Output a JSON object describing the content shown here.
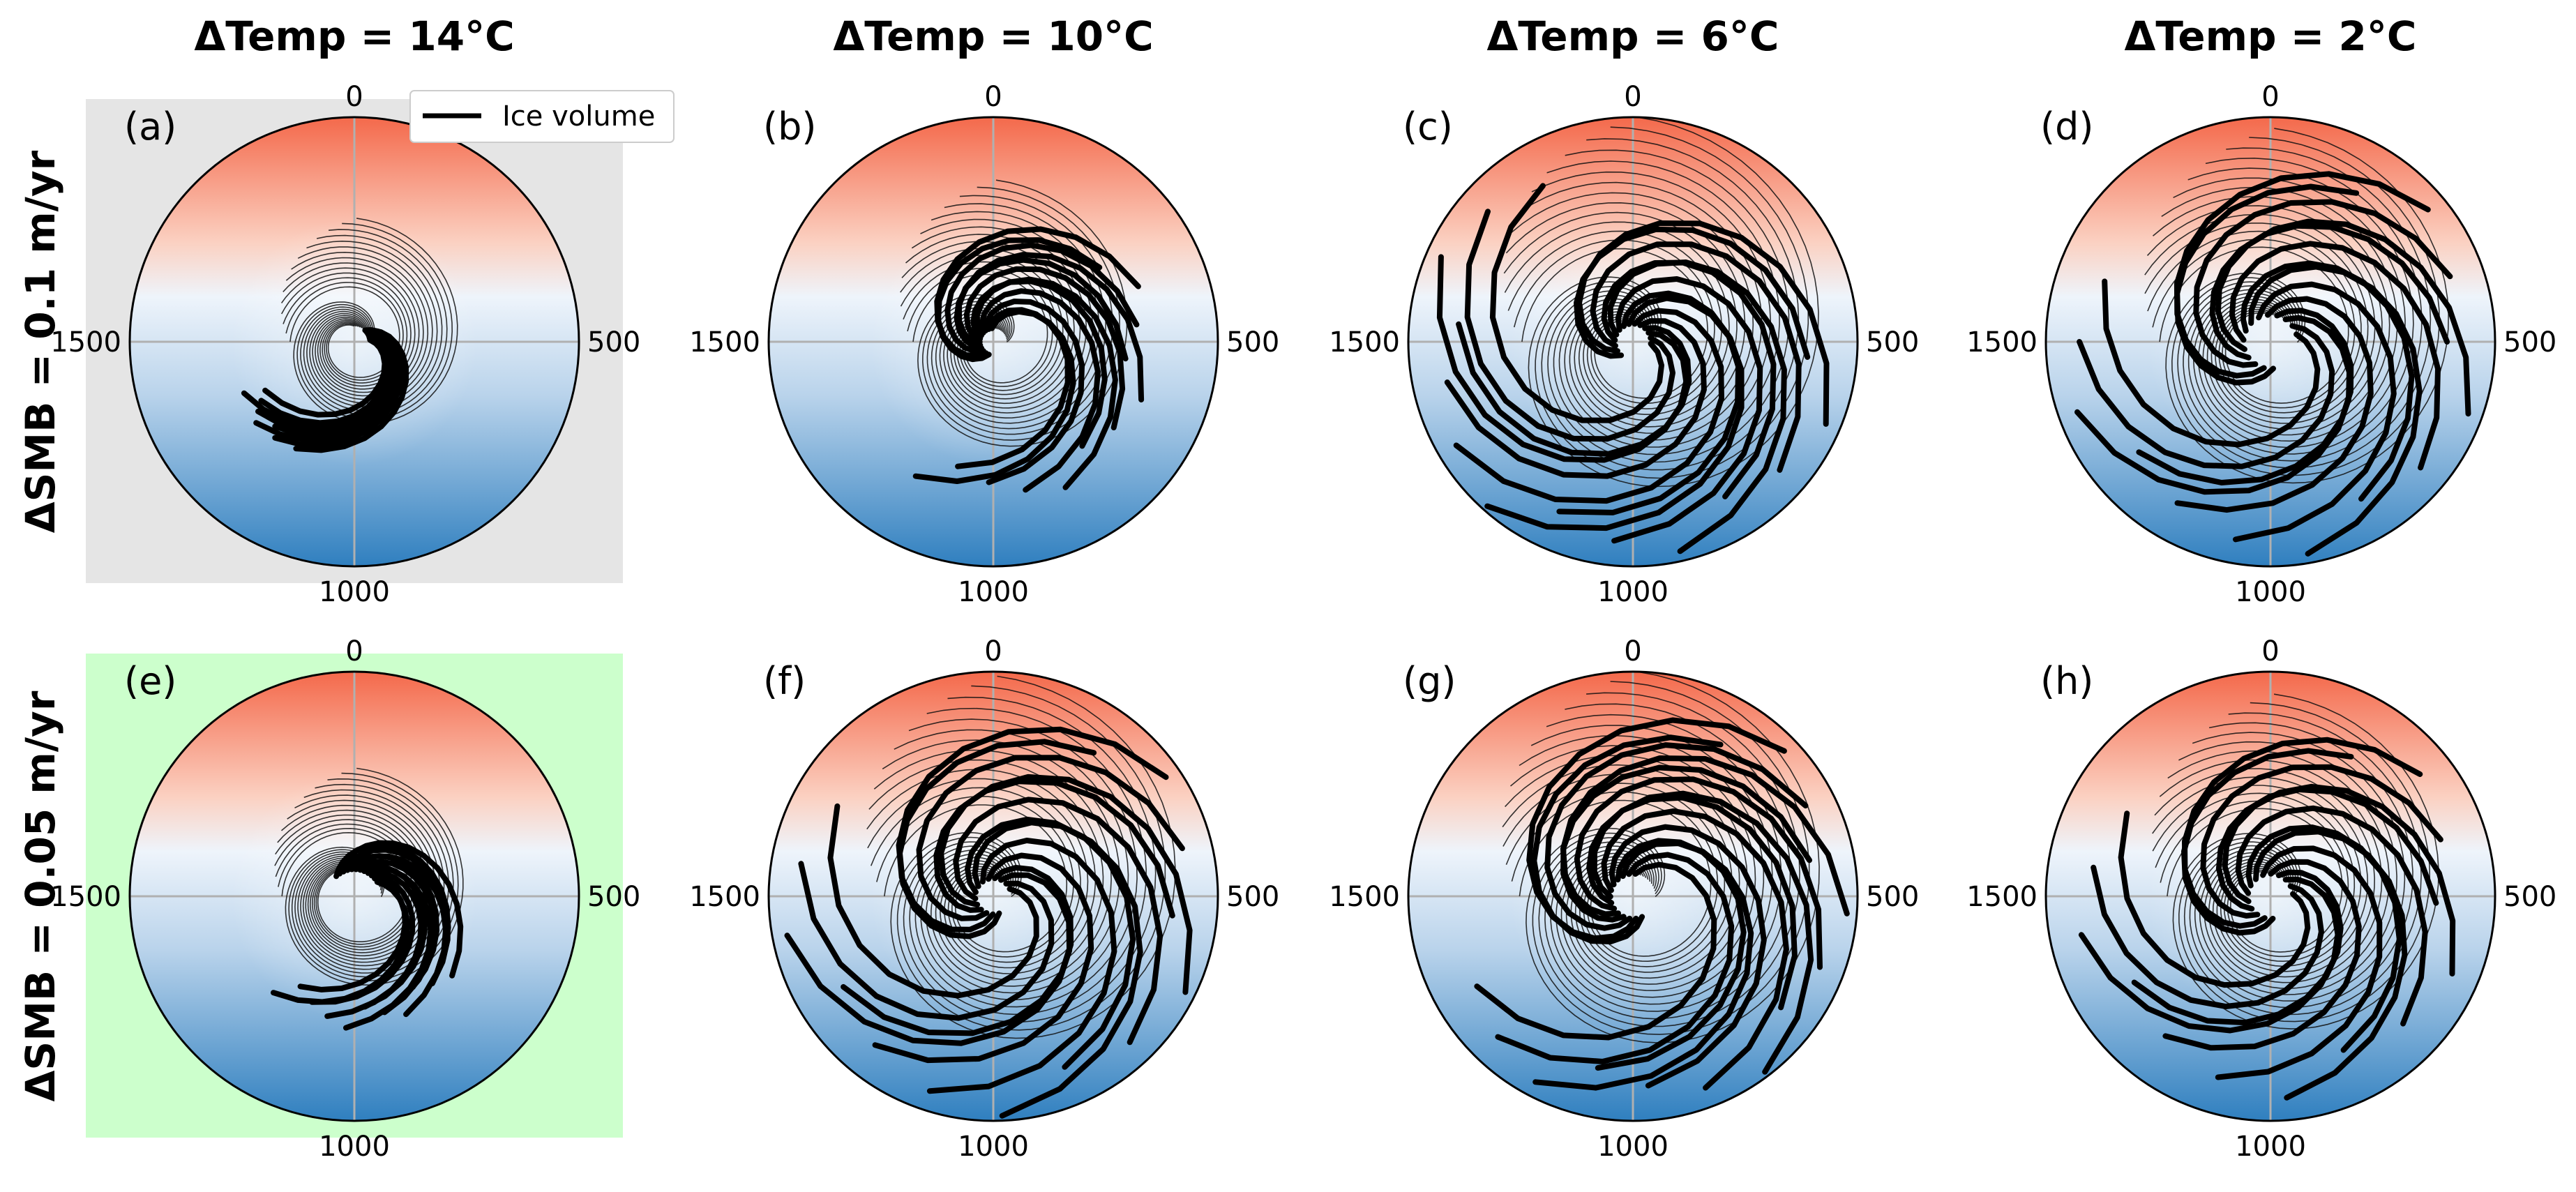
{
  "column_titles": [
    "ΔTemp = 14°C",
    "ΔTemp = 10°C",
    "ΔTemp = 6°C",
    "ΔTemp = 2°C"
  ],
  "row_titles": [
    "ΔSMB = 0.1 m/yr",
    "ΔSMB = 0.05 m/yr"
  ],
  "legend": {
    "label": "Ice volume",
    "placement": "top-right of panel (a)"
  },
  "colors": {
    "warm": "#f4694b",
    "cold": "#2f7fbf",
    "mid": "#eef4fb",
    "panel_a_bg": "#e5e5e5",
    "panel_e_bg": "#ccffcc",
    "line": "#000000",
    "grid": "#b0b0b0"
  },
  "chart_data": {
    "type": "polar-line-small-multiples",
    "angular_axis": {
      "unit": "model years (cycle)",
      "period": 2000,
      "tick_labels": [
        "0",
        "500",
        "1000",
        "1500"
      ],
      "tick_values": [
        0,
        500,
        1000,
        1500
      ],
      "zero_location": "top",
      "direction": "clockwise"
    },
    "radial_axis": {
      "quantity": "Ice volume",
      "range": [
        0,
        1
      ],
      "tick_labels_shown": false
    },
    "background": "temperature shading: warm (red) near 0, cold (blue) near 1000",
    "panels": [
      {
        "label": "(a)",
        "dtemp": 14,
        "dsmb": 0.1,
        "highlight": "grey",
        "spiral_turns": 0.45,
        "r_inner": 0.07,
        "r_outer": 0.58,
        "envelope_outer": 0.55,
        "arms": 12,
        "arm_start_deg": 205,
        "arm_end_deg": 245
      },
      {
        "label": "(b)",
        "dtemp": 10,
        "dsmb": 0.1,
        "highlight": "none",
        "spiral_turns": 0.6,
        "r_inner": 0.06,
        "r_outer": 0.74,
        "envelope_outer": 0.72,
        "arms": 12,
        "arm_start_deg": 55,
        "arm_end_deg": 210
      },
      {
        "label": "(c)",
        "dtemp": 6,
        "dsmb": 0.1,
        "highlight": "none",
        "spiral_turns": 0.65,
        "r_inner": 0.08,
        "r_outer": 1.0,
        "envelope_outer": 1.0,
        "arms": 14,
        "arm_start_deg": 95,
        "arm_end_deg": 330
      },
      {
        "label": "(d)",
        "dtemp": 2,
        "dsmb": 0.1,
        "highlight": "none",
        "spiral_turns": 0.6,
        "r_inner": 0.12,
        "r_outer": 0.98,
        "envelope_outer": 0.95,
        "arms": 14,
        "arm_start_deg": 30,
        "arm_end_deg": 290
      },
      {
        "label": "(e)",
        "dtemp": 14,
        "dsmb": 0.05,
        "highlight": "green",
        "spiral_turns": 0.45,
        "r_inner": 0.12,
        "r_outer": 0.6,
        "envelope_outer": 0.57,
        "arms": 12,
        "arm_start_deg": 120,
        "arm_end_deg": 220
      },
      {
        "label": "(f)",
        "dtemp": 10,
        "dsmb": 0.05,
        "highlight": "none",
        "spiral_turns": 0.65,
        "r_inner": 0.08,
        "r_outer": 1.0,
        "envelope_outer": 0.98,
        "arms": 14,
        "arm_start_deg": 35,
        "arm_end_deg": 300
      },
      {
        "label": "(g)",
        "dtemp": 6,
        "dsmb": 0.05,
        "highlight": "none",
        "spiral_turns": 0.65,
        "r_inner": 0.1,
        "r_outer": 1.0,
        "envelope_outer": 1.0,
        "arms": 14,
        "arm_start_deg": 30,
        "arm_end_deg": 240
      },
      {
        "label": "(h)",
        "dtemp": 2,
        "dsmb": 0.05,
        "highlight": "none",
        "spiral_turns": 0.6,
        "r_inner": 0.1,
        "r_outer": 0.92,
        "envelope_outer": 0.9,
        "arms": 14,
        "arm_start_deg": 30,
        "arm_end_deg": 300
      }
    ]
  }
}
